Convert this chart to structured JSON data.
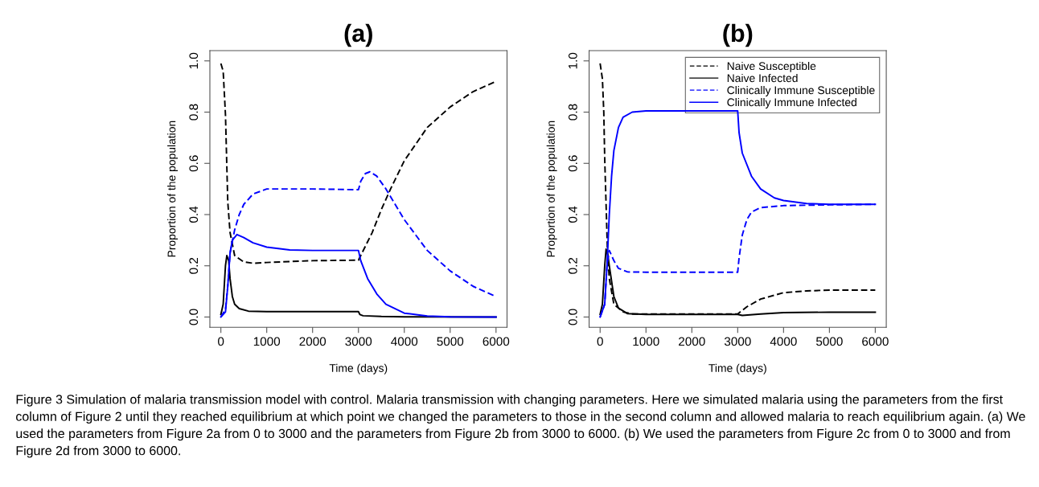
{
  "chart_data": [
    {
      "type": "line",
      "title": "(a)",
      "xlabel": "Time (days)",
      "ylabel": "Proportion of the population",
      "xlim": [
        -240,
        6240
      ],
      "xticks": [
        0,
        1000,
        2000,
        3000,
        4000,
        5000,
        6000
      ],
      "ylim": [
        -0.04,
        1.04
      ],
      "yticks": [
        {
          "value": 0,
          "label": "0.0"
        },
        {
          "value": 0.2,
          "label": "0.2"
        },
        {
          "value": 0.4,
          "label": "0.4"
        },
        {
          "value": 0.6,
          "label": "0.6"
        },
        {
          "value": 0.8,
          "label": "0.8"
        },
        {
          "value": 1.0,
          "label": "1.0"
        }
      ],
      "grid": false,
      "legend": false,
      "annotations": [
        "Figure 3 Simulation of malaria transmission model with control. Malaria transmission with changing parameters. Here we simulated malaria using the parameters from the first column of Figure 2 until they reached equilibrium at which point we changed the parameters to those in the second column and allowed malaria to reach equilibrium again. (a) We used the parameters from Figure 2a from 0 to 3000 and the parameters from Figure 2b from 3000 to 6000. (b) We used the parameters from Figure 2c from 0 to 3000 and from Figure 2d from 3000 to 6000."
      ],
      "series": [
        {
          "color": "#000000",
          "line_style": "dashed",
          "x": [
            0,
            50,
            100,
            150,
            200,
            300,
            500,
            700,
            1000,
            2000,
            3000,
            3050,
            3300,
            3500,
            3700,
            4000,
            4500,
            5000,
            5500,
            6000
          ],
          "values": [
            0.99,
            0.96,
            0.79,
            0.45,
            0.33,
            0.24,
            0.215,
            0.21,
            0.213,
            0.22,
            0.222,
            0.24,
            0.33,
            0.42,
            0.5,
            0.61,
            0.74,
            0.82,
            0.88,
            0.92
          ]
        },
        {
          "color": "#000000",
          "line_style": "solid",
          "x": [
            0,
            50,
            100,
            130,
            170,
            200,
            250,
            300,
            400,
            600,
            1000,
            3000,
            3030,
            3100,
            3500,
            4000,
            6000
          ],
          "values": [
            0.01,
            0.05,
            0.2,
            0.24,
            0.22,
            0.15,
            0.08,
            0.05,
            0.033,
            0.023,
            0.021,
            0.021,
            0.01,
            0.005,
            0.002,
            0.001,
            0
          ]
        },
        {
          "color": "#0000ff",
          "line_style": "dashed",
          "x": [
            0,
            100,
            150,
            200,
            300,
            400,
            500,
            700,
            1000,
            2000,
            3000,
            3050,
            3150,
            3250,
            3400,
            3600,
            3800,
            4000,
            4500,
            5000,
            5500,
            6000
          ],
          "values": [
            0,
            0.03,
            0.12,
            0.25,
            0.34,
            0.4,
            0.44,
            0.48,
            0.5,
            0.5,
            0.497,
            0.53,
            0.56,
            0.567,
            0.55,
            0.5,
            0.44,
            0.38,
            0.26,
            0.18,
            0.12,
            0.08
          ]
        },
        {
          "color": "#0000ff",
          "line_style": "solid",
          "x": [
            0,
            100,
            150,
            200,
            250,
            350,
            500,
            700,
            1000,
            1500,
            2000,
            3000,
            3050,
            3200,
            3400,
            3600,
            4000,
            4500,
            5000,
            6000
          ],
          "values": [
            0,
            0.02,
            0.12,
            0.25,
            0.3,
            0.322,
            0.31,
            0.29,
            0.273,
            0.262,
            0.26,
            0.26,
            0.22,
            0.15,
            0.09,
            0.05,
            0.015,
            0.004,
            0.001,
            0
          ]
        }
      ]
    },
    {
      "type": "line",
      "title": "(b)",
      "xlabel": "Time (days)",
      "ylabel": "Proportion of the population",
      "xlim": [
        -240,
        6240
      ],
      "xticks": [
        0,
        1000,
        2000,
        3000,
        4000,
        5000,
        6000
      ],
      "ylim": [
        -0.04,
        1.04
      ],
      "yticks": [
        {
          "value": 0,
          "label": "0.0"
        },
        {
          "value": 0.2,
          "label": "0.2"
        },
        {
          "value": 0.4,
          "label": "0.4"
        },
        {
          "value": 0.6,
          "label": "0.6"
        },
        {
          "value": 0.8,
          "label": "0.8"
        },
        {
          "value": 1.0,
          "label": "1.0"
        }
      ],
      "grid": false,
      "legend": "top right",
      "series": [
        {
          "name": "Naive Susceptible",
          "color": "#000000",
          "line_style": "dashed",
          "x": [
            0,
            50,
            80,
            100,
            160,
            200,
            300,
            500,
            700,
            3000,
            3200,
            3500,
            4000,
            4500,
            5000,
            6000
          ],
          "values": [
            0.99,
            0.93,
            0.8,
            0.62,
            0.26,
            0.15,
            0.05,
            0.02,
            0.012,
            0.012,
            0.04,
            0.07,
            0.095,
            0.102,
            0.105,
            0.105
          ]
        },
        {
          "name": "Naive Infected",
          "color": "#000000",
          "line_style": "solid",
          "x": [
            0,
            50,
            100,
            130,
            170,
            200,
            300,
            400,
            600,
            1000,
            3000,
            3100,
            3500,
            4000,
            5000,
            6000
          ],
          "values": [
            0.01,
            0.05,
            0.2,
            0.265,
            0.24,
            0.2,
            0.08,
            0.035,
            0.013,
            0.01,
            0.01,
            0.006,
            0.012,
            0.017,
            0.019,
            0.019
          ]
        },
        {
          "name": "Clinically Immune Susceptible",
          "color": "#0000ff",
          "line_style": "dashed",
          "x": [
            0,
            100,
            150,
            200,
            300,
            400,
            600,
            1000,
            3000,
            3030,
            3100,
            3200,
            3300,
            3500,
            4000,
            5000,
            6000
          ],
          "values": [
            0,
            0.05,
            0.2,
            0.26,
            0.22,
            0.19,
            0.176,
            0.175,
            0.175,
            0.23,
            0.32,
            0.38,
            0.41,
            0.427,
            0.435,
            0.438,
            0.44
          ]
        },
        {
          "name": "Clinically Immune Infected",
          "color": "#0000ff",
          "line_style": "solid",
          "x": [
            0,
            100,
            150,
            200,
            250,
            300,
            400,
            500,
            700,
            1000,
            3000,
            3030,
            3100,
            3300,
            3500,
            3800,
            4000,
            4500,
            5000,
            6000
          ],
          "values": [
            0,
            0.05,
            0.2,
            0.4,
            0.55,
            0.65,
            0.74,
            0.78,
            0.8,
            0.805,
            0.805,
            0.72,
            0.64,
            0.55,
            0.5,
            0.465,
            0.455,
            0.443,
            0.44,
            0.44
          ]
        }
      ]
    }
  ]
}
